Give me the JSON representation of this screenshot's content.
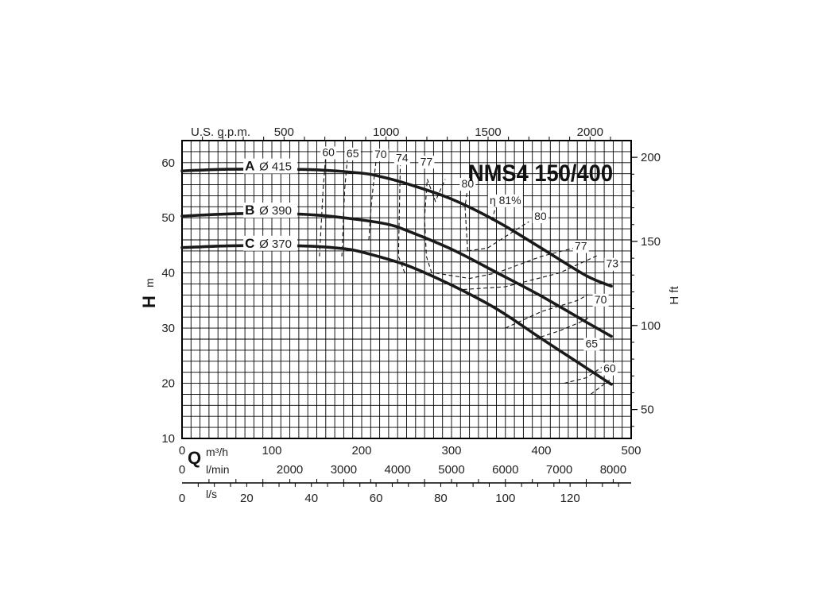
{
  "chart_data": {
    "type": "line",
    "title": "NMS4 150/400",
    "ylabel_main": "H",
    "ylabel_unit": "m",
    "ylabel_right": "H ft",
    "x_label_main": "Q",
    "x_unit_m3h": "m³/h",
    "x_unit_lmin": "l/min",
    "x_unit_ls": "l/s",
    "x_unit_gpm": "U.S. g.p.m.",
    "xlim_m3h": [
      0,
      500
    ],
    "ylim_m": [
      10,
      64
    ],
    "grid": true,
    "x_ticks_m3h": [
      "0",
      "100",
      "200",
      "300",
      "400",
      "500"
    ],
    "x_ticks_lmin": [
      "0",
      "2000",
      "3000",
      "4000",
      "5000",
      "6000",
      "7000",
      "8000"
    ],
    "x_ticks_ls": [
      "0",
      "20",
      "40",
      "60",
      "80",
      "100",
      "120"
    ],
    "x_ticks_gpm": [
      "500",
      "1000",
      "1500",
      "2000"
    ],
    "y_ticks_m": [
      "10",
      "20",
      "30",
      "40",
      "50",
      "60"
    ],
    "y_ticks_ft": [
      "50",
      "100",
      "150",
      "200"
    ],
    "series": [
      {
        "name": "A",
        "diameter": "Ø 415",
        "x": [
          0,
          50,
          100,
          150,
          200,
          220,
          250,
          300,
          350,
          400,
          450,
          478
        ],
        "y": [
          58.5,
          58.8,
          58.8,
          58.7,
          58.1,
          57.5,
          56.2,
          53.4,
          49.4,
          44.5,
          39.5,
          37.6
        ]
      },
      {
        "name": "B",
        "diameter": "Ø 390",
        "x": [
          0,
          50,
          100,
          150,
          200,
          230,
          250,
          300,
          350,
          400,
          450,
          478
        ],
        "y": [
          50.3,
          50.7,
          50.8,
          50.5,
          49.6,
          48.8,
          47.7,
          44.3,
          40.1,
          35.8,
          31.1,
          28.5
        ]
      },
      {
        "name": "C",
        "diameter": "Ø 370",
        "x": [
          0,
          50,
          100,
          150,
          180,
          200,
          250,
          300,
          350,
          400,
          450,
          478
        ],
        "y": [
          44.6,
          44.9,
          45.0,
          44.8,
          44.4,
          43.8,
          41.4,
          37.8,
          33.5,
          28.1,
          22.8,
          19.8
        ]
      }
    ],
    "efficiency_curves": [
      {
        "label": "60",
        "x": [
          153,
          157,
          160
        ],
        "y": [
          43,
          55,
          61.2
        ]
      },
      {
        "label": "65",
        "x": [
          178,
          181,
          184
        ],
        "y": [
          43,
          55,
          60.6
        ]
      },
      {
        "label": "70",
        "x": [
          208,
          211,
          216
        ],
        "y": [
          46,
          53,
          60.4
        ]
      },
      {
        "label": "74",
        "x": [
          248,
          241,
          242,
          243
        ],
        "y": [
          40,
          43,
          52,
          59.5
        ]
      },
      {
        "label": "77",
        "x": [
          278,
          272,
          270,
          273,
          282,
          293
        ],
        "y": [
          40,
          43,
          50,
          57,
          53,
          57
        ]
      },
      {
        "label": "80",
        "x": [
          318,
          315,
          318
        ],
        "y": [
          44,
          52,
          55.5
        ]
      },
      {
        "label": "η 81%",
        "x": [
          345,
          350
        ],
        "y": [
          49.5,
          52.5
        ]
      },
      {
        "label": "80",
        "x": [
          318,
          340,
          386
        ],
        "y": [
          44,
          44.5,
          49.3
        ]
      },
      {
        "label": "77",
        "x": [
          282,
          320,
          350,
          400,
          443
        ],
        "y": [
          40,
          39,
          40,
          43,
          44.8
        ]
      },
      {
        "label": "73",
        "x": [
          313,
          360,
          420,
          463
        ],
        "y": [
          37,
          37.5,
          40,
          43.2
        ]
      },
      {
        "label": "70",
        "x": [
          360,
          400,
          440,
          452
        ],
        "y": [
          30,
          33,
          35,
          36.1
        ]
      },
      {
        "label": "65",
        "x": [
          392,
          420,
          442,
          452
        ],
        "y": [
          28,
          29.5,
          31,
          31.8
        ]
      },
      {
        "label": "60",
        "x": [
          425,
          450,
          470
        ],
        "y": [
          20,
          21,
          23.2
        ]
      },
      {
        "label": "60",
        "x": [
          455,
          476
        ],
        "y": [
          18,
          20.6
        ]
      }
    ],
    "iso_labels": [
      {
        "text": "60",
        "x": 163,
        "y": 61.2
      },
      {
        "text": "65",
        "x": 190,
        "y": 61.0
      },
      {
        "text": "70",
        "x": 221,
        "y": 60.8
      },
      {
        "text": "74",
        "x": 245,
        "y": 60.2
      },
      {
        "text": "77",
        "x": 272,
        "y": 59.5
      },
      {
        "text": "80",
        "x": 318,
        "y": 55.5
      },
      {
        "text": "η 81%",
        "x": 360,
        "y": 52.5
      },
      {
        "text": "80",
        "x": 399,
        "y": 49.6
      },
      {
        "text": "77",
        "x": 444,
        "y": 44.2
      },
      {
        "text": "73",
        "x": 479,
        "y": 41.0
      },
      {
        "text": "70",
        "x": 466,
        "y": 34.5
      },
      {
        "text": "65",
        "x": 456,
        "y": 26.5
      },
      {
        "text": "60",
        "x": 476,
        "y": 22.0
      }
    ],
    "curve_labels": [
      {
        "letter": "A",
        "dia": "Ø 415",
        "x": 70,
        "y": 59.6
      },
      {
        "letter": "B",
        "dia": "Ø 390",
        "x": 70,
        "y": 51.6
      },
      {
        "letter": "C",
        "dia": "Ø 370",
        "x": 70,
        "y": 45.6
      }
    ]
  }
}
